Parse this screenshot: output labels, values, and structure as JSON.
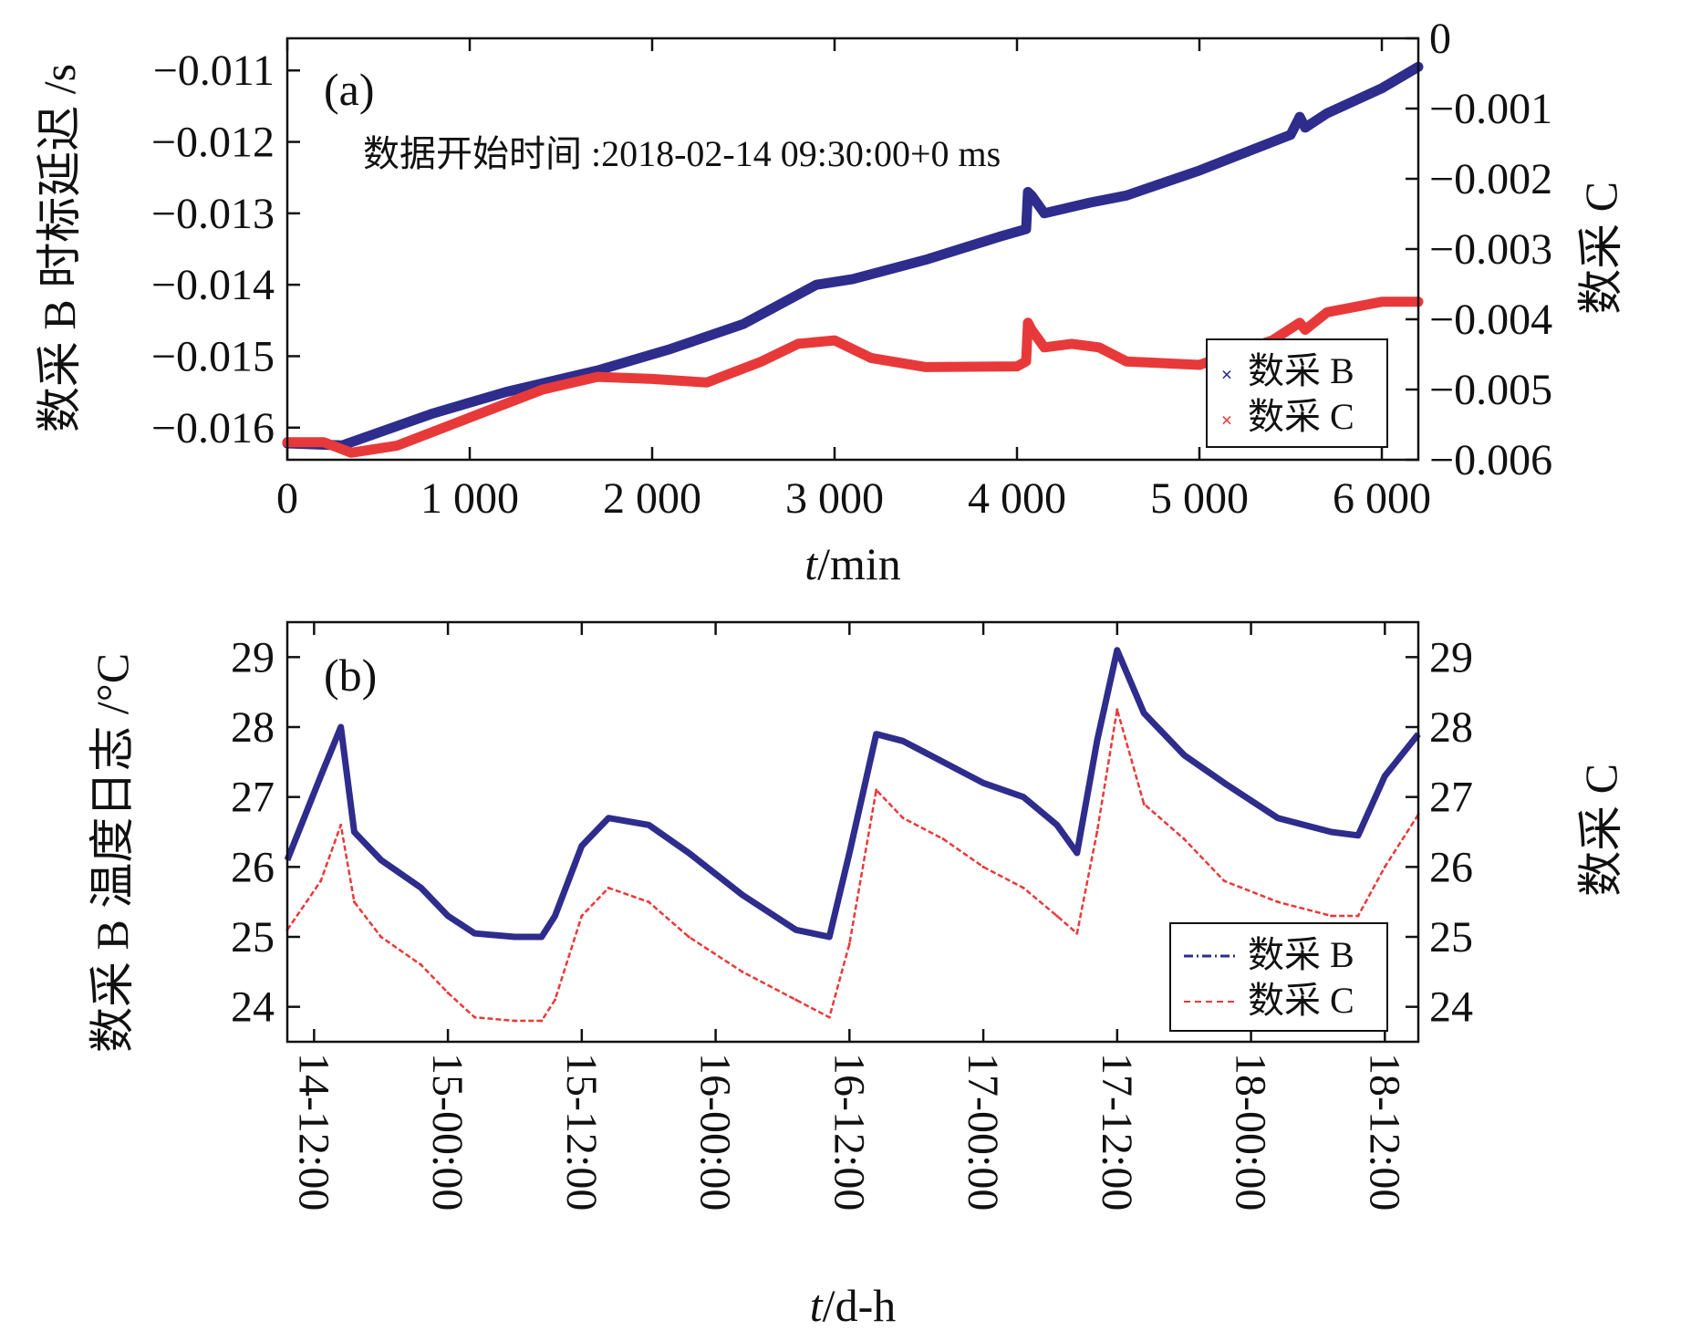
{
  "chart_data": [
    {
      "type": "scatter",
      "panel_label": "(a)",
      "annotation": "数据开始时间 :2018-02-14 09:30:00+0 ms",
      "xlabel_italic": "t",
      "xlabel_rest": "/min",
      "ylabel": "数采 B 时标延迟 /s",
      "y2label": "数采 C",
      "xlim": [
        0,
        6200
      ],
      "ylim": [
        -0.01645,
        -0.01055
      ],
      "y2lim": [
        -0.006,
        0
      ],
      "xticks": [
        0,
        1000,
        2000,
        3000,
        4000,
        5000,
        6000
      ],
      "xtick_labels": [
        "0",
        "1 000",
        "2 000",
        "3 000",
        "4 000",
        "5 000",
        "6 000"
      ],
      "yticks": [
        -0.011,
        -0.012,
        -0.013,
        -0.014,
        -0.015,
        -0.016
      ],
      "ytick_labels": [
        "−0.011",
        "−0.012",
        "−0.013",
        "−0.014",
        "−0.015",
        "−0.016"
      ],
      "y2ticks": [
        0,
        -0.001,
        -0.002,
        -0.003,
        -0.004,
        -0.005,
        -0.006
      ],
      "y2tick_labels": [
        "0",
        "−0.001",
        "−0.002",
        "−0.003",
        "−0.004",
        "−0.005",
        "−0.006"
      ],
      "legend_position": "lower-right",
      "series": [
        {
          "name": "数采 B",
          "axis": "left",
          "color": "#2e2c8c",
          "marker": "x",
          "x": [
            0,
            300,
            800,
            1200,
            1700,
            2100,
            2500,
            2900,
            3100,
            3500,
            3900,
            4050,
            4060,
            4080,
            4150,
            4400,
            4600,
            5000,
            5500,
            5550,
            5580,
            5700,
            6000,
            6200
          ],
          "y": [
            -0.01622,
            -0.01625,
            -0.0158,
            -0.0155,
            -0.0152,
            -0.0149,
            -0.01455,
            -0.014,
            -0.01392,
            -0.01365,
            -0.01333,
            -0.01322,
            -0.0127,
            -0.01275,
            -0.013,
            -0.01285,
            -0.01275,
            -0.0124,
            -0.0119,
            -0.01165,
            -0.0118,
            -0.0116,
            -0.01125,
            -0.01095
          ]
        },
        {
          "name": "数采 C",
          "axis": "right",
          "color": "#e8393a",
          "marker": "x",
          "x": [
            0,
            200,
            350,
            600,
            1000,
            1400,
            1700,
            2000,
            2300,
            2600,
            2800,
            3000,
            3200,
            3500,
            4000,
            4050,
            4060,
            4080,
            4150,
            4300,
            4450,
            4600,
            5000,
            5400,
            5550,
            5580,
            5700,
            6000,
            6200
          ],
          "y": [
            -0.00575,
            -0.00575,
            -0.0059,
            -0.0058,
            -0.0054,
            -0.005,
            -0.00482,
            -0.00485,
            -0.0049,
            -0.0046,
            -0.00435,
            -0.0043,
            -0.00455,
            -0.00468,
            -0.00467,
            -0.0046,
            -0.00405,
            -0.00415,
            -0.0044,
            -0.00435,
            -0.0044,
            -0.0046,
            -0.00465,
            -0.0043,
            -0.00405,
            -0.00415,
            -0.0039,
            -0.00375,
            -0.00375
          ]
        }
      ]
    },
    {
      "type": "line",
      "panel_label": "(b)",
      "xlabel_italic": "t",
      "xlabel_rest": "/d-h",
      "ylabel": "数采 B 温度日志 /°C",
      "y2label": "数采 C",
      "xlim": [
        -2,
        82.5
      ],
      "ylim": [
        23.5,
        29.5
      ],
      "y2lim": [
        23.5,
        29.5
      ],
      "xticks": [
        0,
        10,
        20,
        30,
        40,
        50,
        60,
        70,
        80
      ],
      "xtick_labels": [
        "14-12:00",
        "15-00:00",
        "15-12:00",
        "16-00:00",
        "16-12:00",
        "17-00:00",
        "17-12:00",
        "18-00:00",
        "18-12:00"
      ],
      "yticks": [
        24,
        25,
        26,
        27,
        28,
        29
      ],
      "ytick_labels": [
        "24",
        "25",
        "26",
        "27",
        "28",
        "29"
      ],
      "y2ticks": [
        24,
        25,
        26,
        27,
        28,
        29
      ],
      "y2tick_labels": [
        "24",
        "25",
        "26",
        "27",
        "28",
        "29"
      ],
      "legend_position": "lower-right",
      "series": [
        {
          "name": "数采 B",
          "color": "#2e2c8c",
          "style": "dash-dot",
          "x": [
            -2,
            0.5,
            2,
            3,
            5,
            8,
            10,
            12,
            15,
            17,
            18,
            20,
            22,
            25,
            28,
            32,
            36,
            38.5,
            40,
            42,
            44,
            47,
            50,
            53,
            55.5,
            57,
            58.5,
            60,
            62,
            65,
            68,
            72,
            76,
            78,
            80,
            82.5
          ],
          "y": [
            26.1,
            27.3,
            28.0,
            26.5,
            26.1,
            25.7,
            25.3,
            25.05,
            25.0,
            25.0,
            25.3,
            26.3,
            26.7,
            26.6,
            26.2,
            25.6,
            25.1,
            25.0,
            26.2,
            27.9,
            27.8,
            27.5,
            27.2,
            27.0,
            26.6,
            26.2,
            27.8,
            29.1,
            28.2,
            27.6,
            27.2,
            26.7,
            26.5,
            26.45,
            27.3,
            27.9
          ]
        },
        {
          "name": "数采 C",
          "color": "#e8393a",
          "style": "dashed",
          "x": [
            -2,
            0.5,
            2,
            3,
            5,
            8,
            10,
            12,
            15,
            17,
            18,
            20,
            22,
            25,
            28,
            32,
            36,
            38.5,
            40,
            42,
            44,
            47,
            50,
            53,
            55.5,
            57,
            58.5,
            60,
            62,
            65,
            68,
            72,
            76,
            78,
            80,
            82.5
          ],
          "y": [
            25.1,
            25.8,
            26.6,
            25.5,
            25.0,
            24.6,
            24.2,
            23.85,
            23.8,
            23.8,
            24.1,
            25.3,
            25.7,
            25.5,
            25.0,
            24.5,
            24.1,
            23.85,
            24.9,
            27.1,
            26.7,
            26.4,
            26.0,
            25.7,
            25.3,
            25.05,
            26.5,
            28.25,
            26.9,
            26.4,
            25.8,
            25.5,
            25.3,
            25.3,
            26.0,
            26.75
          ]
        }
      ]
    }
  ]
}
